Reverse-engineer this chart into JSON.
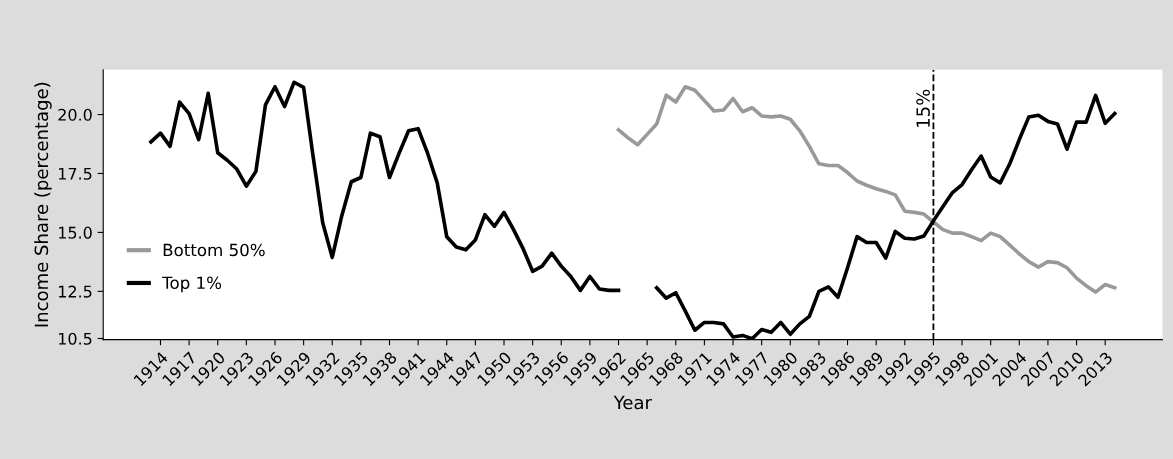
{
  "chart_data": {
    "type": "line",
    "xlabel": "Year",
    "ylabel": "Income Share (percentage)",
    "x": [
      1913,
      1914,
      1915,
      1916,
      1917,
      1918,
      1919,
      1920,
      1921,
      1922,
      1923,
      1924,
      1925,
      1926,
      1927,
      1928,
      1929,
      1930,
      1931,
      1932,
      1933,
      1934,
      1935,
      1936,
      1937,
      1938,
      1939,
      1940,
      1941,
      1942,
      1943,
      1944,
      1945,
      1946,
      1947,
      1948,
      1949,
      1950,
      1951,
      1952,
      1953,
      1954,
      1955,
      1956,
      1957,
      1958,
      1959,
      1960,
      1961,
      1962,
      1963,
      1964,
      1965,
      1966,
      1967,
      1968,
      1969,
      1970,
      1971,
      1972,
      1973,
      1974,
      1975,
      1976,
      1977,
      1978,
      1979,
      1980,
      1981,
      1982,
      1983,
      1984,
      1985,
      1986,
      1987,
      1988,
      1989,
      1990,
      1991,
      1992,
      1993,
      1994,
      1995,
      1996,
      1997,
      1998,
      1999,
      2000,
      2001,
      2002,
      2003,
      2004,
      2005,
      2006,
      2007,
      2008,
      2009,
      2010,
      2011,
      2012,
      2013,
      2014
    ],
    "series": [
      {
        "name": "Bottom 50%",
        "color": "#999999",
        "values": [
          null,
          null,
          null,
          null,
          null,
          null,
          null,
          null,
          null,
          null,
          null,
          null,
          null,
          null,
          null,
          null,
          null,
          null,
          null,
          null,
          null,
          null,
          null,
          null,
          null,
          null,
          null,
          null,
          null,
          null,
          null,
          null,
          null,
          null,
          null,
          null,
          null,
          null,
          null,
          null,
          null,
          null,
          null,
          null,
          null,
          null,
          null,
          null,
          null,
          19.35,
          19.01,
          18.72,
          19.16,
          19.6,
          20.82,
          20.53,
          21.18,
          21.03,
          20.59,
          20.15,
          20.19,
          20.68,
          20.12,
          20.29,
          19.94,
          19.9,
          19.94,
          19.8,
          19.31,
          18.65,
          17.91,
          17.84,
          17.84,
          17.54,
          17.18,
          17.0,
          16.85,
          16.74,
          16.59,
          15.9,
          15.85,
          15.78,
          15.44,
          15.12,
          14.97,
          14.97,
          14.82,
          14.65,
          14.97,
          14.82,
          14.46,
          14.09,
          13.76,
          13.53,
          13.76,
          13.72,
          13.5,
          13.06,
          12.74,
          12.47,
          12.79,
          12.65
        ]
      },
      {
        "name": "Top 1%",
        "color": "#000000",
        "values": [
          18.84,
          19.21,
          18.65,
          20.53,
          20.04,
          18.94,
          20.9,
          18.38,
          18.06,
          17.69,
          16.96,
          17.59,
          20.41,
          21.18,
          20.34,
          21.37,
          21.15,
          18.21,
          15.41,
          13.94,
          15.71,
          17.15,
          17.33,
          19.21,
          19.06,
          17.33,
          18.35,
          19.31,
          19.4,
          18.35,
          17.1,
          14.82,
          14.38,
          14.26,
          14.68,
          15.75,
          15.26,
          15.85,
          15.12,
          14.31,
          13.35,
          13.57,
          14.12,
          13.57,
          13.13,
          12.54,
          13.13,
          12.6,
          12.54,
          12.54,
          null,
          null,
          null,
          12.65,
          12.21,
          12.44,
          11.66,
          10.85,
          11.18,
          11.18,
          11.12,
          10.56,
          10.63,
          10.49,
          10.88,
          10.76,
          11.18,
          10.68,
          11.12,
          11.44,
          12.5,
          12.69,
          12.25,
          13.5,
          14.82,
          14.57,
          14.57,
          13.91,
          15.04,
          14.75,
          14.72,
          14.85,
          15.49,
          16.1,
          16.69,
          17.03,
          17.66,
          18.24,
          17.35,
          17.1,
          17.91,
          18.94,
          19.9,
          19.97,
          19.71,
          19.6,
          18.53,
          19.68,
          19.68,
          20.81,
          19.63,
          20.04
        ]
      }
    ],
    "xlim": [
      1908,
      2019
    ],
    "xticks": [
      1914,
      1917,
      1920,
      1923,
      1926,
      1929,
      1932,
      1935,
      1938,
      1941,
      1944,
      1947,
      1950,
      1953,
      1956,
      1959,
      1962,
      1965,
      1968,
      1971,
      1974,
      1977,
      1980,
      1983,
      1986,
      1989,
      1992,
      1995,
      1998,
      2001,
      2004,
      2007,
      2010,
      2013
    ],
    "ylim": [
      10.45,
      21.9
    ],
    "yticks": [
      {
        "value": 10.5,
        "label": "10.5"
      },
      {
        "value": 12.5,
        "label": "12.5"
      },
      {
        "value": 15,
        "label": "15.0"
      },
      {
        "value": 17.5,
        "label": "17.5"
      },
      {
        "value": 20,
        "label": "20.0"
      }
    ],
    "ref_lines": [
      {
        "axis": "x",
        "value": 1995,
        "color": "#000000",
        "line_style": "dashed"
      }
    ],
    "annotations": [
      "15%"
    ],
    "legend": "bottom left",
    "grid": false,
    "marker": "none",
    "line_style": "solid"
  }
}
